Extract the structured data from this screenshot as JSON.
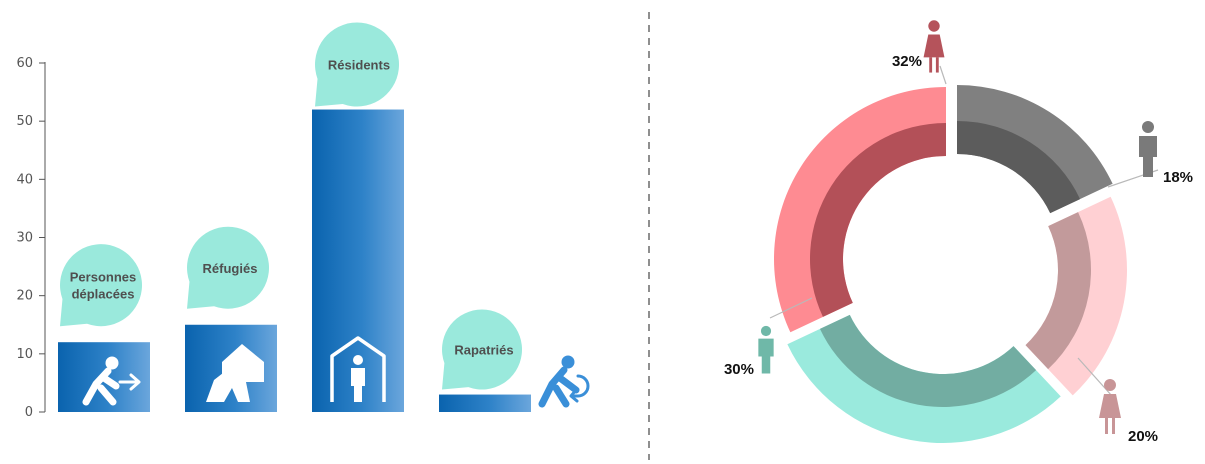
{
  "chart_data": [
    {
      "type": "bar",
      "categories": [
        "Personnes déplacées",
        "Réfugiés",
        "Résidents",
        "Rapatriés"
      ],
      "category_lines": [
        [
          "Personnes",
          "déplacées"
        ],
        [
          "Réfugiés"
        ],
        [
          "Résidents"
        ],
        [
          "Rapatriés"
        ]
      ],
      "values": [
        12,
        15,
        52,
        3
      ],
      "ylim": [
        0,
        60
      ],
      "yticks": [
        "0",
        "10",
        "20",
        "30",
        "40",
        "50",
        "60"
      ],
      "icons": [
        "person-arrow-icon",
        "tent-icon",
        "house-person-icon",
        "person-return-icon"
      ],
      "bar_color": "#0f67b1",
      "bubble_color": "#9ae9dc",
      "title": "",
      "xlabel": "",
      "ylabel": ""
    },
    {
      "type": "pie",
      "style": "donut",
      "slices": [
        {
          "label": "18%",
          "value": 18,
          "icon": "man-icon",
          "outer_color": "#808080",
          "inner_color": "#5c5c5c"
        },
        {
          "label": "20%",
          "value": 20,
          "icon": "woman-icon",
          "outer_color": "#ffd0d3",
          "inner_color": "#c29a9b"
        },
        {
          "label": "30%",
          "value": 30,
          "icon": "man-icon",
          "outer_color": "#9aeadd",
          "inner_color": "#72ada2"
        },
        {
          "label": "32%",
          "value": 32,
          "icon": "woman-icon",
          "outer_color": "#fe8b92",
          "inner_color": "#b35058"
        }
      ],
      "icon_colors": [
        "#7a7a7a",
        "#c89597",
        "#6fb8a8",
        "#b5535b"
      ]
    }
  ]
}
